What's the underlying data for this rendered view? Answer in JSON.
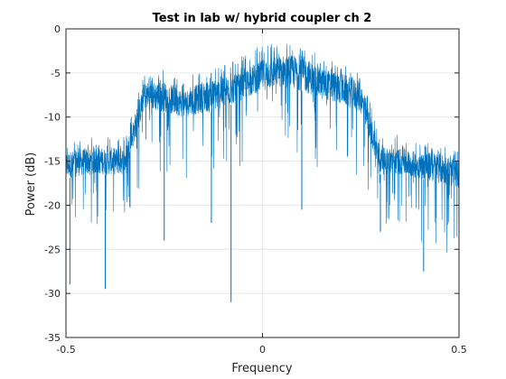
{
  "chart_data": {
    "type": "line",
    "title": "Test in lab w/ hybrid coupler ch 2",
    "xlabel": "Frequency",
    "ylabel": "Power (dB)",
    "xlim": [
      -0.5,
      0.5
    ],
    "ylim": [
      -35,
      0
    ],
    "x_ticks": [
      -0.5,
      0,
      0.5
    ],
    "x_tick_labels": [
      "-0.5",
      "0",
      "0.5"
    ],
    "y_ticks": [
      0,
      -5,
      -10,
      -15,
      -20,
      -25,
      -30,
      -35
    ],
    "y_tick_labels": [
      "0",
      "-5",
      "-10",
      "-15",
      "-20",
      "-25",
      "-30",
      "-35"
    ],
    "grid": true,
    "box": true,
    "series_color": "#0072BD",
    "series": [
      {
        "x": [
          -0.5,
          -0.45,
          -0.4,
          -0.35,
          -0.3,
          -0.25,
          -0.2,
          -0.15,
          -0.1,
          -0.05,
          0.0,
          0.05,
          0.1,
          0.15,
          0.2,
          0.25,
          0.3,
          0.35,
          0.4,
          0.45,
          0.5
        ],
        "upper": [
          -13.0,
          -12.5,
          -12.0,
          -12.0,
          -5.0,
          -4.5,
          -5.5,
          -4.5,
          -4.0,
          -3.0,
          -1.5,
          -1.5,
          -2.0,
          -3.0,
          -4.0,
          -5.0,
          -12.0,
          -12.0,
          -12.5,
          -13.0,
          -14.0
        ],
        "band_top": [
          -14.0,
          -13.5,
          -13.5,
          -13.5,
          -6.0,
          -6.0,
          -7.0,
          -6.0,
          -5.5,
          -5.0,
          -3.5,
          -3.0,
          -3.0,
          -4.5,
          -5.0,
          -6.0,
          -13.5,
          -13.5,
          -14.0,
          -14.0,
          -15.0
        ],
        "band_bottom": [
          -17.0,
          -16.5,
          -16.5,
          -16.5,
          -9.0,
          -9.5,
          -10.0,
          -9.5,
          -9.0,
          -8.0,
          -7.0,
          -6.5,
          -7.0,
          -8.0,
          -8.5,
          -9.5,
          -16.5,
          -16.5,
          -17.0,
          -17.5,
          -18.0
        ],
        "lower": [
          -24.0,
          -23.0,
          -23.0,
          -22.0,
          -17.0,
          -16.5,
          -17.0,
          -17.0,
          -16.0,
          -15.5,
          -15.0,
          -14.0,
          -15.0,
          -16.0,
          -16.5,
          -17.0,
          -22.0,
          -23.0,
          -24.0,
          -25.0,
          -26.0
        ]
      }
    ],
    "deep_dips": [
      {
        "x": -0.49,
        "y": -29.0
      },
      {
        "x": -0.4,
        "y": -29.5
      },
      {
        "x": -0.25,
        "y": -24.0
      },
      {
        "x": -0.13,
        "y": -22.0
      },
      {
        "x": -0.08,
        "y": -31.0
      },
      {
        "x": 0.1,
        "y": -20.5
      },
      {
        "x": 0.3,
        "y": -23.0
      },
      {
        "x": 0.41,
        "y": -27.5
      },
      {
        "x": 0.5,
        "y": -27.0
      }
    ]
  }
}
